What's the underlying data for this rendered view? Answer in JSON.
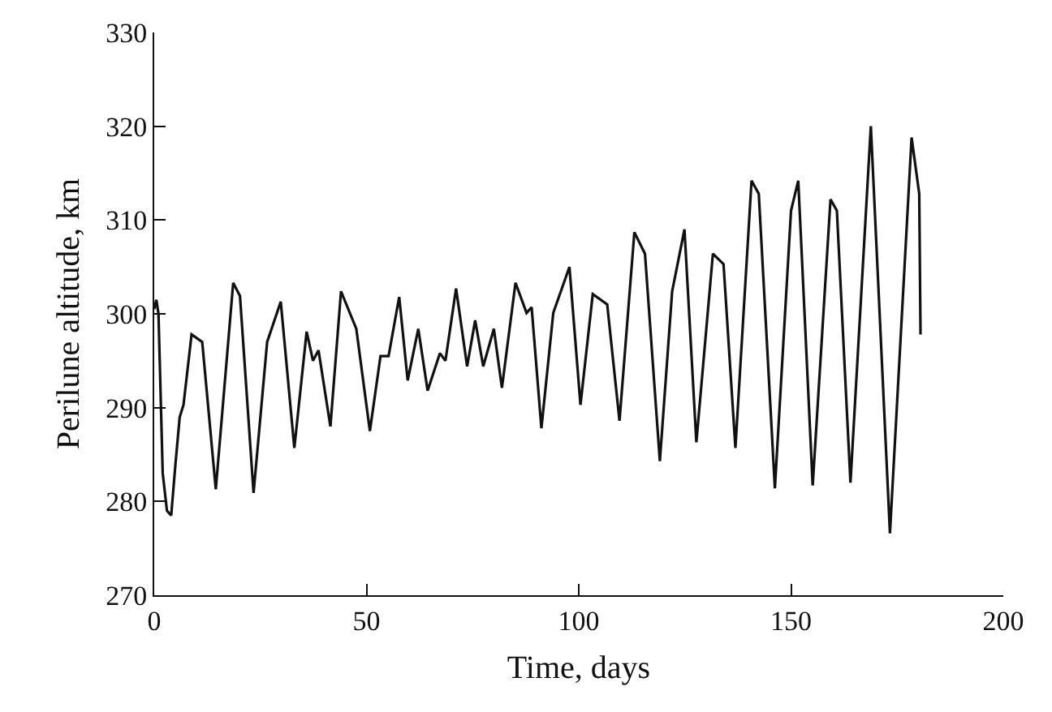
{
  "chart_data": {
    "type": "line",
    "xlabel": "Time, days",
    "ylabel": "Perilune altitude, km",
    "xlim": [
      0,
      200
    ],
    "xticks": [
      0,
      50,
      100,
      150,
      200
    ],
    "ylim": [
      270,
      330
    ],
    "yticks": [
      270,
      280,
      290,
      300,
      310,
      320,
      330
    ],
    "grid": false,
    "marker": "none",
    "line_style": "solid",
    "series": [
      {
        "color": "#111111",
        "x": [
          0,
          0.5,
          1,
          2,
          3,
          4,
          5,
          6,
          6.9,
          8.8,
          11.3,
          14.5,
          18.6,
          20.2,
          23.4,
          26.6,
          29.8,
          33,
          35.9,
          37.4,
          38.7,
          41.5,
          44,
          47.6,
          50.8,
          53.3,
          55.2,
          57.7,
          59.7,
          62.2,
          64.4,
          67.3,
          68.6,
          71.1,
          73.7,
          75.6,
          77.5,
          80,
          81.9,
          85.1,
          87.7,
          88.9,
          91.2,
          94,
          97.8,
          100.4,
          103.3,
          106.7,
          109.6,
          113.1,
          115.6,
          119.1,
          122,
          124.9,
          127.7,
          131.6,
          134.1,
          136.9,
          140.7,
          142.4,
          146.2,
          150,
          151.7,
          155.1,
          159.3,
          160.8,
          164,
          168.8,
          173.3,
          178.4,
          180.2,
          180.5
        ],
        "values": [
          300.5,
          301.5,
          300,
          283,
          279,
          278.5,
          284,
          289,
          290.3,
          297.8,
          297,
          281.3,
          303.3,
          301.9,
          280.9,
          297,
          301.3,
          285.7,
          298.1,
          295,
          296.1,
          288,
          302.4,
          298.4,
          287.5,
          295.5,
          295.5,
          301.8,
          292.9,
          298.4,
          291.8,
          295.8,
          295,
          302.7,
          294.4,
          299.3,
          294.4,
          298.4,
          292.1,
          303.3,
          300.1,
          300.7,
          287.8,
          300.1,
          305,
          290.3,
          302.1,
          301,
          288.6,
          308.7,
          306.4,
          284.3,
          302.4,
          309,
          286.3,
          306.4,
          305.3,
          285.7,
          314.2,
          312.8,
          281.4,
          311,
          314.2,
          281.7,
          312.2,
          311,
          282,
          320,
          276.6,
          318.8,
          312.8,
          297.8
        ]
      }
    ]
  }
}
